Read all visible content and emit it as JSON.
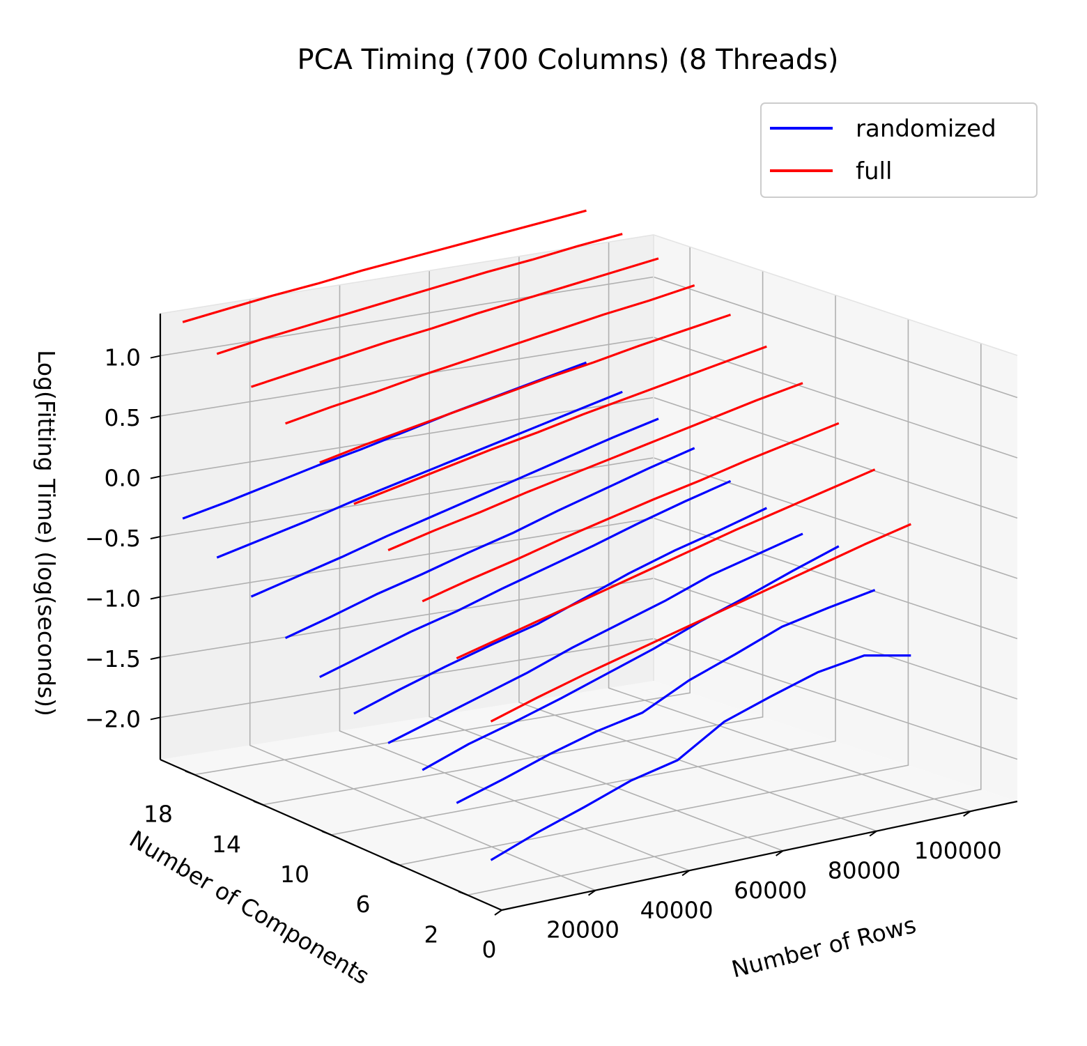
{
  "chart_data": {
    "type": "line",
    "projection": "3d",
    "title": "PCA Timing (700 Columns) (8 Threads)",
    "xlabel": "Number of Rows",
    "ylabel": "Number of Components",
    "zlabel": "Log(Fitting Time) (log(seconds))",
    "x_ticks": [
      0,
      20000,
      40000,
      60000,
      80000,
      100000
    ],
    "x_tick_labels": [
      "0",
      "20000",
      "40000",
      "60000",
      "80000",
      "100000"
    ],
    "y_ticks": [
      2,
      6,
      10,
      14,
      18
    ],
    "y_tick_labels": [
      "2",
      "6",
      "10",
      "14",
      "18"
    ],
    "z_ticks": [
      -2.0,
      -1.5,
      -1.0,
      -0.5,
      0.0,
      0.5,
      1.0
    ],
    "z_tick_labels": [
      "−2.0",
      "−1.5",
      "−1.0",
      "−0.5",
      "0.0",
      "0.5",
      "1.0"
    ],
    "xlim": [
      0,
      110000
    ],
    "ylim": [
      0,
      20
    ],
    "zlim": [
      -2.35,
      1.35
    ],
    "grid": true,
    "legend_position": "top-right",
    "legend": [
      {
        "label": "randomized",
        "color": "#0000ff"
      },
      {
        "label": "full",
        "color": "#ff0000"
      }
    ],
    "x": [
      5000,
      15000,
      25000,
      35000,
      45000,
      55000,
      65000,
      75000,
      85000,
      95000
    ],
    "series": [
      {
        "name": "randomized",
        "components": 2,
        "color": "#0000ff",
        "values": [
          -2.1,
          -1.95,
          -1.82,
          -1.68,
          -1.59,
          -1.35,
          -1.22,
          -1.1,
          -1.04,
          -1.12
        ]
      },
      {
        "name": "randomized",
        "components": 4,
        "color": "#0000ff",
        "values": [
          -1.75,
          -1.63,
          -1.5,
          -1.39,
          -1.31,
          -1.12,
          -0.98,
          -0.83,
          -0.75,
          -0.68
        ]
      },
      {
        "name": "randomized",
        "components": 6,
        "color": "#0000ff",
        "values": [
          -1.6,
          -1.46,
          -1.35,
          -1.23,
          -1.1,
          -0.97,
          -0.82,
          -0.69,
          -0.55,
          -0.42
        ]
      },
      {
        "name": "randomized",
        "components": 8,
        "color": "#0000ff",
        "values": [
          -1.5,
          -1.38,
          -1.26,
          -1.14,
          -1.0,
          -0.88,
          -0.76,
          -0.62,
          -0.52,
          -0.42
        ]
      },
      {
        "name": "randomized",
        "components": 10,
        "color": "#0000ff",
        "values": [
          -1.38,
          -1.25,
          -1.13,
          -1.02,
          -0.92,
          -0.78,
          -0.64,
          -0.52,
          -0.42,
          -0.31
        ]
      },
      {
        "name": "randomized",
        "components": 12,
        "color": "#0000ff",
        "values": [
          -1.2,
          -1.08,
          -0.96,
          -0.86,
          -0.74,
          -0.63,
          -0.52,
          -0.4,
          -0.29,
          -0.19
        ]
      },
      {
        "name": "randomized",
        "components": 14,
        "color": "#0000ff",
        "values": [
          -1.0,
          -0.89,
          -0.77,
          -0.67,
          -0.56,
          -0.46,
          -0.34,
          -0.23,
          -0.12,
          -0.02
        ]
      },
      {
        "name": "randomized",
        "components": 16,
        "color": "#0000ff",
        "values": [
          -0.78,
          -0.68,
          -0.58,
          -0.47,
          -0.37,
          -0.27,
          -0.17,
          -0.07,
          0.03,
          0.12
        ]
      },
      {
        "name": "randomized",
        "components": 18,
        "color": "#0000ff",
        "values": [
          -0.58,
          -0.49,
          -0.4,
          -0.3,
          -0.21,
          -0.12,
          -0.03,
          0.06,
          0.15,
          0.24
        ]
      },
      {
        "name": "randomized",
        "components": 20,
        "color": "#0000ff",
        "values": [
          -0.38,
          -0.3,
          -0.21,
          -0.12,
          -0.04,
          0.05,
          0.14,
          0.22,
          0.3,
          0.38
        ]
      },
      {
        "name": "full",
        "components": 2,
        "color": "#ff0000",
        "values": [
          -0.95,
          -0.83,
          -0.72,
          -0.62,
          -0.52,
          -0.42,
          -0.32,
          -0.22,
          -0.12,
          -0.03
        ]
      },
      {
        "name": "full",
        "components": 4,
        "color": "#ff0000",
        "values": [
          -0.55,
          -0.45,
          -0.35,
          -0.25,
          -0.15,
          -0.05,
          0.05,
          0.14,
          0.23,
          0.32
        ]
      },
      {
        "name": "full",
        "components": 6,
        "color": "#ff0000",
        "values": [
          -0.2,
          -0.1,
          -0.01,
          0.09,
          0.18,
          0.27,
          0.35,
          0.44,
          0.52,
          0.6
        ]
      },
      {
        "name": "full",
        "components": 8,
        "color": "#ff0000",
        "values": [
          0.1,
          0.19,
          0.27,
          0.36,
          0.44,
          0.52,
          0.6,
          0.68,
          0.76,
          0.83
        ]
      },
      {
        "name": "full",
        "components": 10,
        "color": "#ff0000",
        "values": [
          0.36,
          0.44,
          0.52,
          0.6,
          0.67,
          0.75,
          0.82,
          0.89,
          0.96,
          1.03
        ]
      },
      {
        "name": "full",
        "components": 12,
        "color": "#ff0000",
        "values": [
          0.58,
          0.66,
          0.73,
          0.8,
          0.87,
          0.94,
          1.0,
          1.07,
          1.13,
          1.19
        ]
      },
      {
        "name": "full",
        "components": 14,
        "color": "#ff0000",
        "values": [
          0.78,
          0.85,
          0.91,
          0.98,
          1.04,
          1.1,
          1.16,
          1.22,
          1.27,
          1.33
        ]
      },
      {
        "name": "full",
        "components": 16,
        "color": "#ff0000",
        "values": [
          0.96,
          1.02,
          1.08,
          1.14,
          1.19,
          1.25,
          1.3,
          1.35,
          1.4,
          1.45
        ]
      },
      {
        "name": "full",
        "components": 18,
        "color": "#ff0000",
        "values": [
          1.11,
          1.17,
          1.22,
          1.27,
          1.32,
          1.37,
          1.42,
          1.46,
          1.51,
          1.55
        ]
      },
      {
        "name": "full",
        "components": 20,
        "color": "#ff0000",
        "values": [
          1.25,
          1.3,
          1.35,
          1.39,
          1.44,
          1.48,
          1.52,
          1.56,
          1.6,
          1.64
        ]
      }
    ]
  }
}
